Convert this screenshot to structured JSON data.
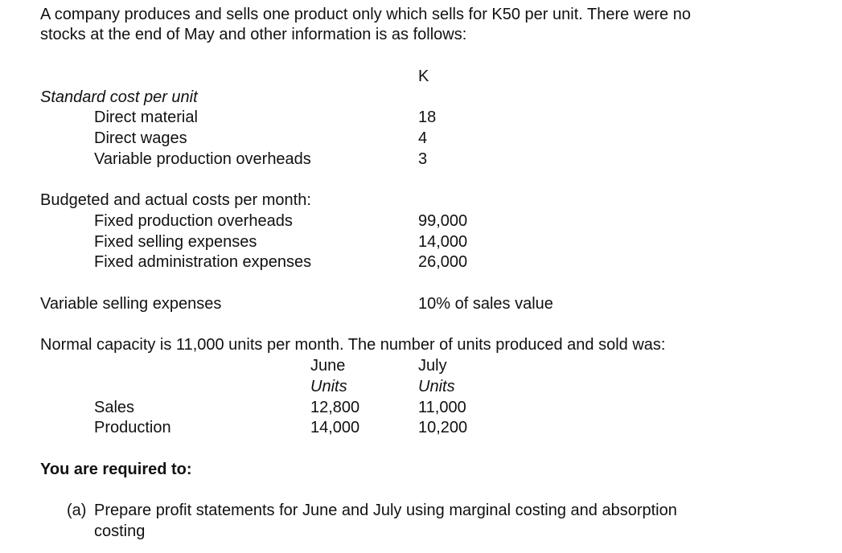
{
  "intro": {
    "line1": "A company produces and sells one product only which sells for K50 per unit. There were no",
    "line2": "stocks at the end of May and other information is as follows:"
  },
  "currency_header": "K",
  "standard_cost": {
    "heading": "Standard cost per unit",
    "items": [
      {
        "label": "Direct material",
        "value": "18"
      },
      {
        "label": "Direct wages",
        "value": "4"
      },
      {
        "label": "Variable production overheads",
        "value": "3"
      }
    ]
  },
  "budgeted": {
    "heading": "Budgeted and actual costs per month:",
    "items": [
      {
        "label": "Fixed production overheads",
        "value": "99,000"
      },
      {
        "label": "Fixed selling expenses",
        "value": "14,000"
      },
      {
        "label": "Fixed administration expenses",
        "value": "26,000"
      }
    ]
  },
  "variable_selling": {
    "label": "Variable selling expenses",
    "value": "10% of sales value"
  },
  "capacity": {
    "text": "Normal capacity is 11,000 units per month. The number of units produced and sold was:",
    "columns": [
      {
        "month": "June",
        "unit": "Units"
      },
      {
        "month": "July",
        "unit": "Units"
      }
    ],
    "rows": [
      {
        "label": "Sales",
        "june": "12,800",
        "july": "11,000"
      },
      {
        "label": "Production",
        "june": "14,000",
        "july": "10,200"
      }
    ]
  },
  "required": {
    "heading": "You are required to:",
    "items": [
      {
        "marker": "(a)",
        "line1": "Prepare profit statements for June and July using marginal costing and absorption",
        "line2": "costing"
      }
    ]
  }
}
